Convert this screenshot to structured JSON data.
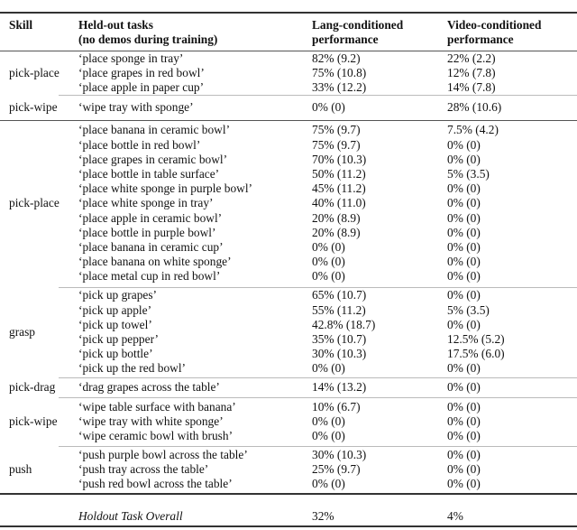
{
  "headers": {
    "skill": "Skill",
    "task_line1": "Held-out tasks",
    "task_line2": "(no demos during training)",
    "lang_line1": "Lang-conditioned",
    "lang_line2": "performance",
    "video_line1": "Video-conditioned",
    "video_line2": "performance"
  },
  "groups": [
    {
      "skill": "pick-place",
      "rows": [
        {
          "task": "‘place sponge in tray’",
          "lang": "82% (9.2)",
          "video": "22% (2.2)"
        },
        {
          "task": "‘place grapes in red bowl’",
          "lang": "75% (10.8)",
          "video": "12% (7.8)"
        },
        {
          "task": "‘place apple in paper cup’",
          "lang": "33% (12.2)",
          "video": "14% (7.8)"
        }
      ]
    },
    {
      "skill": "pick-wipe",
      "rows": [
        {
          "task": "‘wipe tray with sponge’",
          "lang": "0% (0)",
          "video": "28% (10.6)"
        }
      ]
    },
    {
      "skill": "pick-place",
      "rows": [
        {
          "task": "‘place banana in ceramic bowl’",
          "lang": "75% (9.7)",
          "video": "7.5% (4.2)"
        },
        {
          "task": "‘place bottle in red bowl’",
          "lang": "75% (9.7)",
          "video": "0% (0)"
        },
        {
          "task": "‘place grapes in ceramic bowl’",
          "lang": "70% (10.3)",
          "video": "0% (0)"
        },
        {
          "task": "‘place bottle in table surface’",
          "lang": "50% (11.2)",
          "video": "5% (3.5)"
        },
        {
          "task": "‘place white sponge in purple bowl’",
          "lang": "45% (11.2)",
          "video": "0% (0)"
        },
        {
          "task": "‘place white sponge in tray’",
          "lang": "40% (11.0)",
          "video": "0% (0)"
        },
        {
          "task": "‘place apple in ceramic bowl’",
          "lang": "20% (8.9)",
          "video": "0% (0)"
        },
        {
          "task": "‘place bottle in purple bowl’",
          "lang": "20% (8.9)",
          "video": "0% (0)"
        },
        {
          "task": "‘place banana in ceramic cup’",
          "lang": "0% (0)",
          "video": "0% (0)"
        },
        {
          "task": "‘place banana on white sponge’",
          "lang": "0% (0)",
          "video": "0% (0)"
        },
        {
          "task": "‘place metal cup in red bowl’",
          "lang": "0% (0)",
          "video": "0% (0)"
        }
      ]
    },
    {
      "skill": "grasp",
      "rows": [
        {
          "task": "‘pick up grapes’",
          "lang": "65% (10.7)",
          "video": "0% (0)"
        },
        {
          "task": "‘pick up apple’",
          "lang": "55% (11.2)",
          "video": "5% (3.5)"
        },
        {
          "task": "‘pick up towel’",
          "lang": "42.8% (18.7)",
          "video": "0% (0)"
        },
        {
          "task": "‘pick up pepper’",
          "lang": "35% (10.7)",
          "video": "12.5% (5.2)"
        },
        {
          "task": "‘pick up bottle’",
          "lang": "30% (10.3)",
          "video": "17.5% (6.0)"
        },
        {
          "task": "‘pick up the red bowl’",
          "lang": "0% (0)",
          "video": "0% (0)"
        }
      ]
    },
    {
      "skill": "pick-drag",
      "rows": [
        {
          "task": "‘drag grapes across the table’",
          "lang": "14% (13.2)",
          "video": "0% (0)"
        }
      ]
    },
    {
      "skill": "pick-wipe",
      "rows": [
        {
          "task": "‘wipe table surface with banana’",
          "lang": "10% (6.7)",
          "video": "0% (0)"
        },
        {
          "task": "‘wipe tray with white sponge’",
          "lang": "0% (0)",
          "video": "0% (0)"
        },
        {
          "task": "‘wipe ceramic bowl with brush’",
          "lang": "0% (0)",
          "video": "0% (0)"
        }
      ]
    },
    {
      "skill": "push",
      "rows": [
        {
          "task": "‘push purple bowl across the table’",
          "lang": "30% (10.3)",
          "video": "0% (0)"
        },
        {
          "task": "‘push tray across the table’",
          "lang": "25% (9.7)",
          "video": "0% (0)"
        },
        {
          "task": "‘push red bowl across the table’",
          "lang": "0% (0)",
          "video": "0% (0)"
        }
      ]
    }
  ],
  "overall": {
    "label": "Holdout Task Overall",
    "lang": "32%",
    "video": "4%"
  }
}
